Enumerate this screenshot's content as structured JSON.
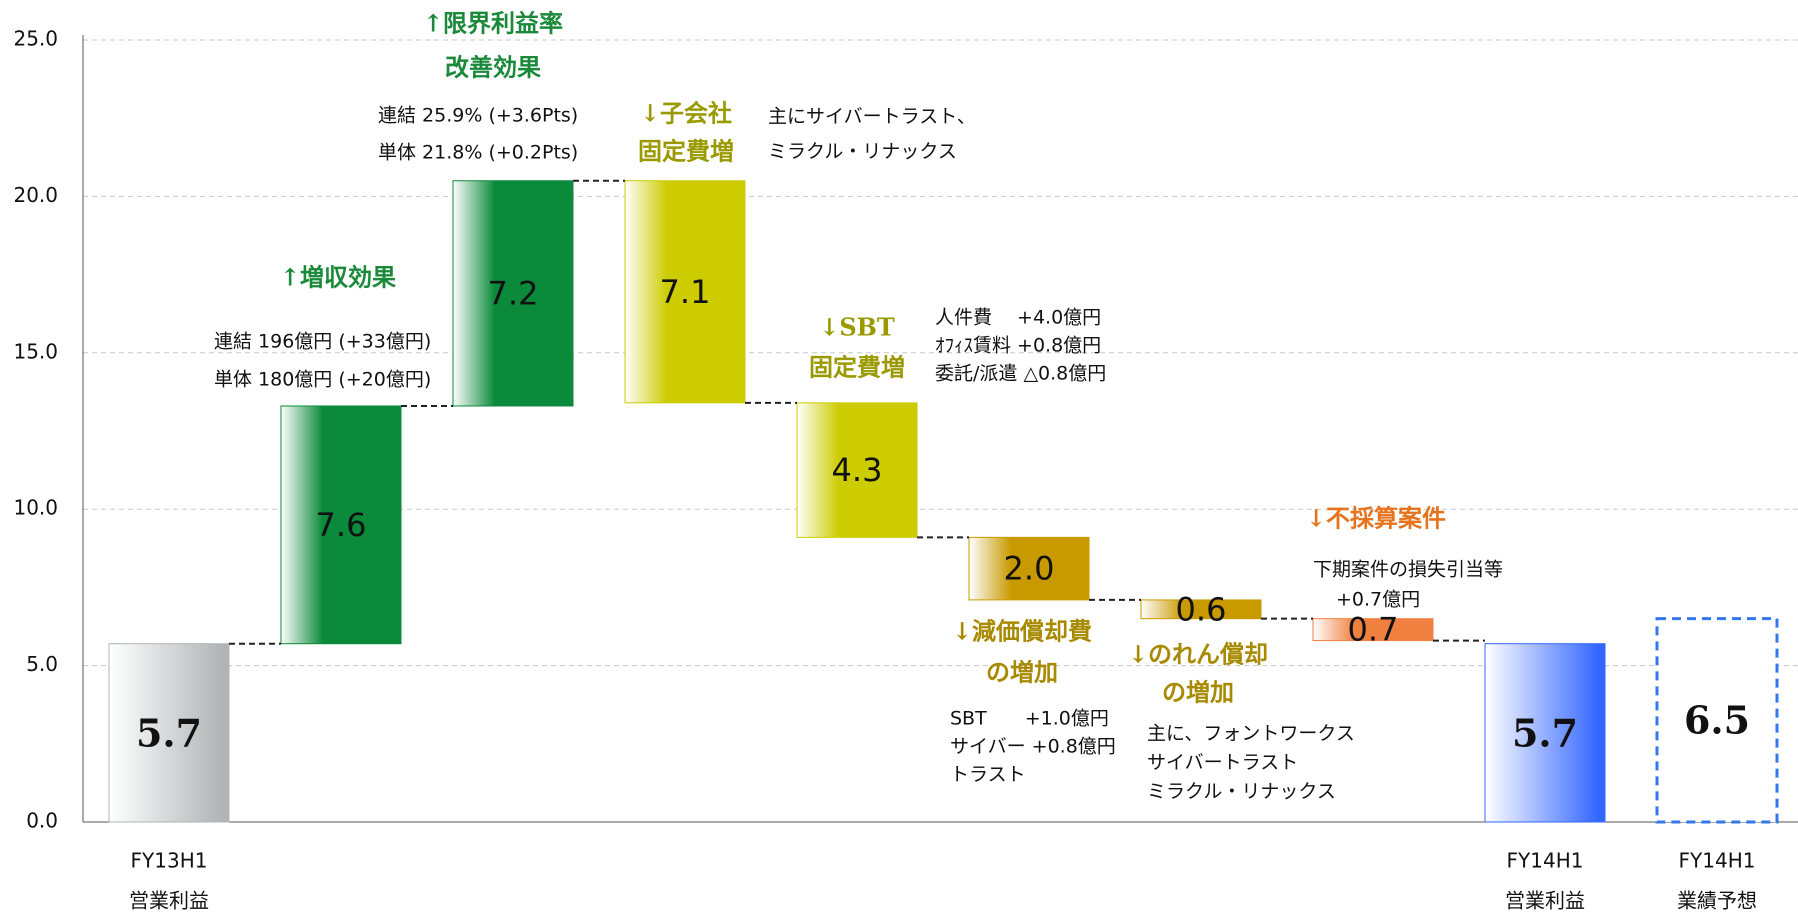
{
  "chart_data": {
    "type": "waterfall",
    "categories": [
      [
        "FY13H1",
        "営業利益"
      ],
      null,
      null,
      null,
      null,
      null,
      null,
      null,
      [
        "FY14H1",
        "営業利益"
      ],
      [
        "FY14H1",
        "業績予想"
      ]
    ],
    "values": [
      5.7,
      7.6,
      7.2,
      -7.1,
      -4.3,
      -2.0,
      -0.6,
      -0.7,
      5.7,
      6.5
    ],
    "value_labels": [
      "5.7",
      "7.6",
      "7.2",
      "7.1",
      "4.3",
      "2.0",
      "0.6",
      "0.7",
      "5.7",
      "6.5"
    ],
    "total": [
      true,
      false,
      false,
      false,
      false,
      false,
      false,
      false,
      true,
      true
    ],
    "dashed": [
      false,
      false,
      false,
      false,
      false,
      false,
      false,
      false,
      false,
      true
    ],
    "colors": [
      "#b0b4b6",
      "#0a8a3a",
      "#0a8a3a",
      "#cccc00",
      "#cccc00",
      "#c99a00",
      "#c99a00",
      "#f08040",
      "#3366ff",
      "#3377ee"
    ],
    "ylim": [
      0,
      25
    ],
    "yticks": [
      {
        "value": 0,
        "label": "0.0"
      },
      {
        "value": 5,
        "label": "5.0"
      },
      {
        "value": 10,
        "label": "10.0"
      },
      {
        "value": 15,
        "label": "15.0"
      },
      {
        "value": 20,
        "label": "20.0"
      },
      {
        "value": 25,
        "label": "25.0"
      }
    ],
    "grid": true,
    "annotations": [
      {
        "lines": [
          "↑限界利益率",
          "改善効果"
        ],
        "color": "#1a8a3a"
      },
      {
        "lines": [
          "連結 25.9% (+3.6Pts)",
          "単体 21.8% (+0.2Pts)"
        ],
        "color": "#111111"
      },
      {
        "lines": [
          "↓子会社",
          "固定費増"
        ],
        "color": "#9a9a00"
      },
      {
        "lines": [
          "主にサイバートラスト、",
          "ミラクル・リナックス"
        ],
        "color": "#111111"
      },
      {
        "lines": [
          "↑増収効果"
        ],
        "color": "#1a8a3a"
      },
      {
        "lines": [
          "連結 196億円 (+33億円)",
          "単体 180億円 (+20億円)"
        ],
        "color": "#111111"
      },
      {
        "lines": [
          "↓SBT",
          "固定費増"
        ],
        "color": "#9a9a00"
      },
      {
        "lines": [
          "人件費　 +4.0億円",
          "ｵﾌｨｽ賃料 +0.8億円",
          "委託/派遣 △0.8億円"
        ],
        "color": "#111111"
      },
      {
        "lines": [
          "↓減価償却費",
          "の増加"
        ],
        "color": "#a88a00"
      },
      {
        "lines": [
          "SBT　　+1.0億円",
          "サイバー +0.8億円",
          "トラスト"
        ],
        "color": "#111111"
      },
      {
        "lines": [
          "↓のれん償却",
          "の増加"
        ],
        "color": "#a88a00"
      },
      {
        "lines": [
          "主に、フォントワークス",
          "サイバートラスト",
          "ミラクル・リナックス"
        ],
        "color": "#111111"
      },
      {
        "lines": [
          "↓不採算案件"
        ],
        "color": "#e8731e"
      },
      {
        "lines": [
          "下期案件の損失引当等",
          "+0.7億円"
        ],
        "color": "#111111"
      }
    ]
  }
}
